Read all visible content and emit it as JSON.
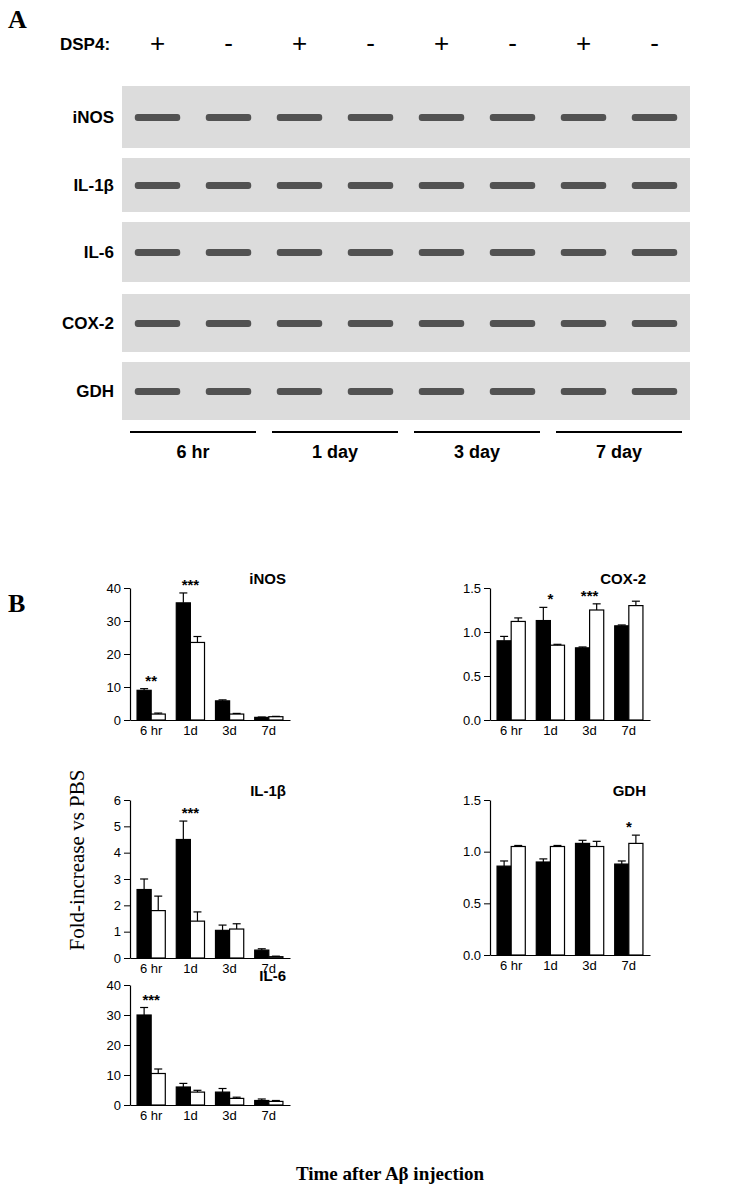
{
  "figure": {
    "panel_labels": [
      "A",
      "B"
    ],
    "y_label": "Fold-increase vs PBS",
    "x_label": "Time after Aβ injection"
  },
  "gel": {
    "treatment_label": "DSP4:",
    "lanes": [
      "+",
      "-",
      "+",
      "-",
      "+",
      "-",
      "+",
      "-"
    ],
    "rows": [
      "iNOS",
      "IL-1β",
      "IL-6",
      "COX-2",
      "GDH"
    ],
    "timepoints": [
      "6 hr",
      "1 day",
      "3 day",
      "7 day"
    ]
  },
  "chart_data": [
    {
      "type": "bar",
      "title": "iNOS",
      "categories": [
        "6 hr",
        "1d",
        "3d",
        "7d"
      ],
      "ylim": [
        0,
        40
      ],
      "yticks": [
        0,
        10,
        20,
        30,
        40
      ],
      "series": [
        {
          "color": "#000000",
          "values": [
            9,
            35.5,
            5.8,
            0.8
          ],
          "errors": [
            0.5,
            3,
            0.3,
            0.1
          ]
        },
        {
          "color": "#ffffff",
          "values": [
            1.8,
            23.5,
            1.8,
            1.0
          ],
          "errors": [
            0.3,
            1.8,
            0.2,
            0.1
          ]
        }
      ],
      "annotations": [
        {
          "category": "6 hr",
          "text": "**"
        },
        {
          "category": "1d",
          "text": "***"
        }
      ]
    },
    {
      "type": "bar",
      "title": "IL-1β",
      "categories": [
        "6 hr",
        "1d",
        "3d",
        "7d"
      ],
      "ylim": [
        0,
        6
      ],
      "yticks": [
        0,
        1,
        2,
        3,
        4,
        5,
        6
      ],
      "series": [
        {
          "color": "#000000",
          "values": [
            2.6,
            4.5,
            1.05,
            0.3
          ],
          "errors": [
            0.4,
            0.7,
            0.2,
            0.05
          ]
        },
        {
          "color": "#ffffff",
          "values": [
            1.8,
            1.4,
            1.1,
            0.05
          ],
          "errors": [
            0.55,
            0.35,
            0.2,
            0.02
          ]
        }
      ],
      "annotations": [
        {
          "category": "1d",
          "text": "***"
        }
      ]
    },
    {
      "type": "bar",
      "title": "IL-6",
      "categories": [
        "6 hr",
        "1d",
        "3d",
        "7d"
      ],
      "ylim": [
        0,
        40
      ],
      "yticks": [
        0,
        10,
        20,
        30,
        40
      ],
      "series": [
        {
          "color": "#000000",
          "values": [
            30,
            6,
            4.3,
            1.5
          ],
          "errors": [
            2.5,
            1.2,
            1.2,
            0.5
          ]
        },
        {
          "color": "#ffffff",
          "values": [
            10.5,
            4.3,
            2.2,
            1.2
          ],
          "errors": [
            1.5,
            0.6,
            0.4,
            0.3
          ]
        }
      ],
      "annotations": [
        {
          "category": "6 hr",
          "text": "***"
        }
      ]
    },
    {
      "type": "bar",
      "title": "COX-2",
      "categories": [
        "6 hr",
        "1d",
        "3d",
        "7d"
      ],
      "ylim": [
        0,
        1.5
      ],
      "yticks": [
        {
          "value": 0,
          "label": "0.0"
        },
        0.5,
        {
          "value": 1,
          "label": "1.0"
        },
        1.5
      ],
      "series": [
        {
          "color": "#000000",
          "values": [
            0.9,
            1.13,
            0.82,
            1.07
          ],
          "errors": [
            0.05,
            0.15,
            0.01,
            0.01
          ]
        },
        {
          "color": "#ffffff",
          "values": [
            1.12,
            0.85,
            1.25,
            1.3
          ],
          "errors": [
            0.04,
            0.01,
            0.07,
            0.05
          ]
        }
      ],
      "annotations": [
        {
          "category": "1d",
          "text": "*"
        },
        {
          "category": "3d",
          "text": "***"
        }
      ]
    },
    {
      "type": "bar",
      "title": "GDH",
      "categories": [
        "6 hr",
        "1d",
        "3d",
        "7d"
      ],
      "ylim": [
        0,
        1.5
      ],
      "yticks": [
        {
          "value": 0,
          "label": "0.0"
        },
        0.5,
        {
          "value": 1,
          "label": "1.0"
        },
        1.5
      ],
      "series": [
        {
          "color": "#000000",
          "values": [
            0.86,
            0.9,
            1.08,
            0.88
          ],
          "errors": [
            0.05,
            0.03,
            0.03,
            0.03
          ]
        },
        {
          "color": "#ffffff",
          "values": [
            1.05,
            1.05,
            1.05,
            1.08
          ],
          "errors": [
            0.01,
            0.01,
            0.05,
            0.08
          ]
        }
      ],
      "annotations": [
        {
          "category": "7d",
          "text": "*"
        }
      ]
    }
  ]
}
